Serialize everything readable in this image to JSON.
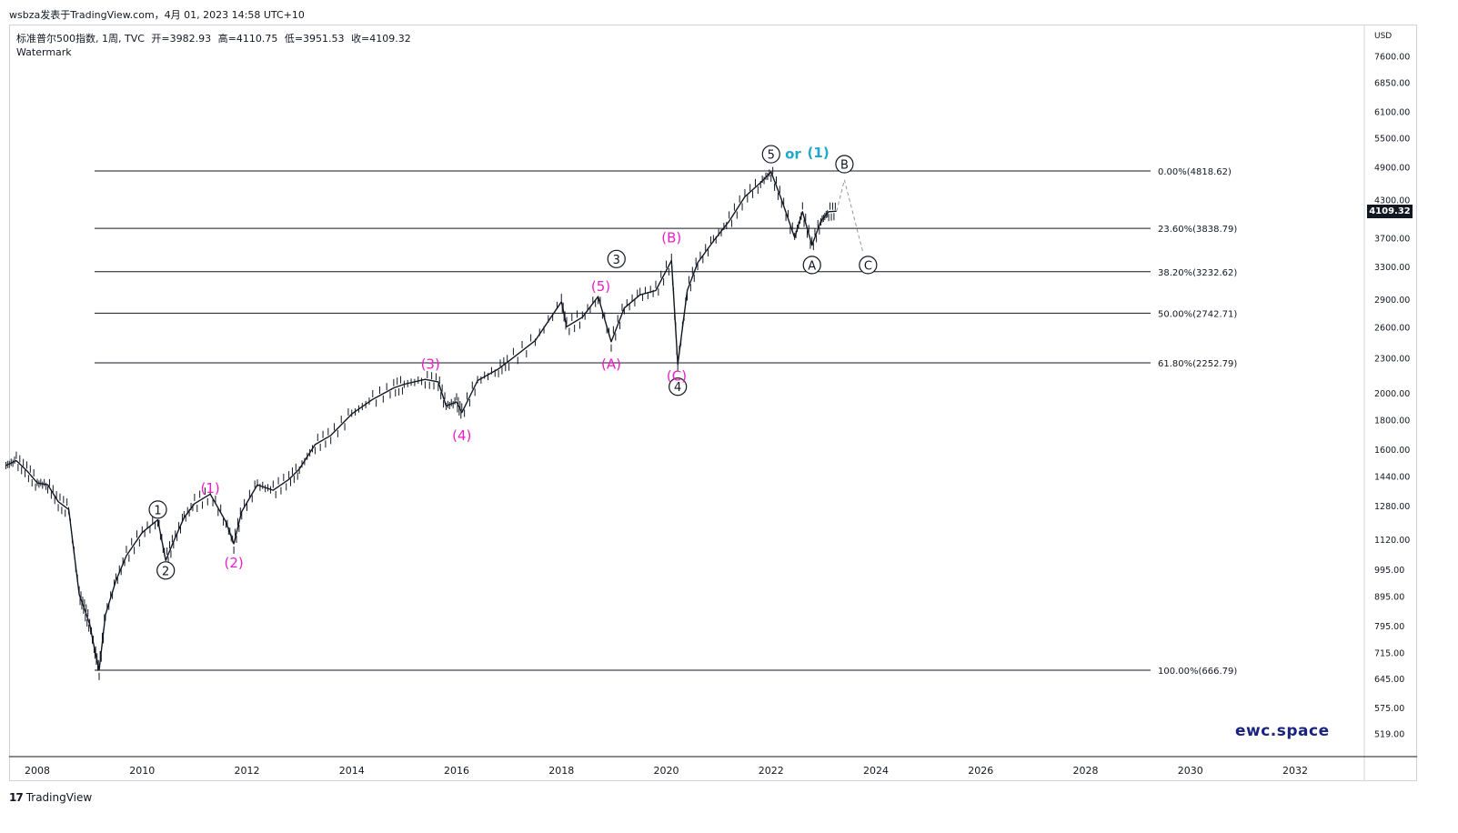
{
  "header": {
    "publisher_line": "wsbza发表于TradingView.com，4月 01, 2023 14:58 UTC+10"
  },
  "legend": {
    "symbol": "标准普尔500指数, 1周, TVC",
    "open": "开=3982.93",
    "high": "高=4110.75",
    "low": "低=3951.53",
    "close": "收=4109.32",
    "watermark": "Watermark"
  },
  "footer": {
    "logo": "17",
    "name": "TradingView"
  },
  "brand": "ewc.space",
  "colors": {
    "candle": "#131722",
    "wave_magenta": "#e91ec8",
    "wave_cyan": "#1fa8c9",
    "fib_line": "#131722",
    "axis_text": "#131722",
    "price_tag_bg": "#131722"
  },
  "chart_data": {
    "type": "line",
    "title": "",
    "currency": "USD",
    "scale": "log",
    "last_price": "4109.32",
    "x_ticks": [
      "2008",
      "2010",
      "2012",
      "2014",
      "2016",
      "2018",
      "2020",
      "2022",
      "2024",
      "2026",
      "2028",
      "2030",
      "2032"
    ],
    "y_ticks": [
      "7600.00",
      "6850.00",
      "6100.00",
      "5500.00",
      "4900.00",
      "4300.00",
      "3700.00",
      "3300.00",
      "2900.00",
      "2600.00",
      "2300.00",
      "2000.00",
      "1800.00",
      "1600.00",
      "1440.00",
      "1280.00",
      "1120.00",
      "995.00",
      "895.00",
      "795.00",
      "715.00",
      "645.00",
      "575.00",
      "519.00"
    ],
    "series": [
      {
        "x": [
          2007.4,
          2007.6,
          2007.8,
          2008.0,
          2008.2,
          2008.4,
          2008.6,
          2008.8,
          2008.9,
          2009.0,
          2009.1,
          2009.18,
          2009.3,
          2009.5,
          2009.7,
          2010.0,
          2010.3,
          2010.45,
          2010.6,
          2010.8,
          2011.0,
          2011.3,
          2011.6,
          2011.75,
          2011.9,
          2012.2,
          2012.5,
          2012.8,
          2013.0,
          2013.3,
          2013.6,
          2014.0,
          2014.4,
          2014.8,
          2015.0,
          2015.4,
          2015.65,
          2015.8,
          2016.0,
          2016.1,
          2016.4,
          2016.8,
          2017.0,
          2017.5,
          2018.0,
          2018.1,
          2018.4,
          2018.7,
          2018.95,
          2019.2,
          2019.5,
          2019.8,
          2020.1,
          2020.22,
          2020.4,
          2020.6,
          2020.9,
          2021.2,
          2021.5,
          2021.8,
          2022.0,
          2022.2,
          2022.45,
          2022.6,
          2022.78,
          2022.95,
          2023.1,
          2023.25
        ],
        "y": [
          1500,
          1530,
          1470,
          1400,
          1390,
          1300,
          1260,
          900,
          850,
          800,
          720,
          667,
          830,
          950,
          1050,
          1150,
          1210,
          1030,
          1110,
          1220,
          1290,
          1340,
          1200,
          1100,
          1250,
          1390,
          1360,
          1420,
          1480,
          1630,
          1690,
          1840,
          1950,
          2040,
          2070,
          2110,
          2090,
          1900,
          1930,
          1850,
          2100,
          2200,
          2270,
          2460,
          2870,
          2600,
          2700,
          2930,
          2450,
          2800,
          2950,
          3000,
          3380,
          2240,
          3000,
          3350,
          3650,
          3950,
          4350,
          4600,
          4800,
          4300,
          3700,
          4100,
          3590,
          3950,
          4100,
          4109
        ]
      }
    ],
    "projection": {
      "x": [
        2023.25,
        2023.4,
        2023.75
      ],
      "y": [
        4109,
        4650,
        3500
      ]
    },
    "fib_levels": [
      {
        "label": "0.00%(4818.62)",
        "value": 4818.62
      },
      {
        "label": "23.60%(3838.79)",
        "value": 3838.79
      },
      {
        "label": "38.20%(3232.62)",
        "value": 3232.62
      },
      {
        "label": "50.00%(2742.71)",
        "value": 2742.71
      },
      {
        "label": "61.80%(2252.79)",
        "value": 2252.79
      },
      {
        "label": "100.00%(666.79)",
        "value": 666.79
      }
    ],
    "wave_labels": [
      {
        "text": "1",
        "style": "circle",
        "color": "#131722",
        "x": 2010.3,
        "y": 1260
      },
      {
        "text": "2",
        "style": "circle",
        "color": "#131722",
        "x": 2010.45,
        "y": 990
      },
      {
        "text": "3",
        "style": "circle",
        "color": "#131722",
        "x": 2019.05,
        "y": 3400
      },
      {
        "text": "4",
        "style": "circle",
        "color": "#131722",
        "x": 2020.22,
        "y": 2050
      },
      {
        "text": "5",
        "style": "circle",
        "color": "#131722",
        "x": 2022.0,
        "y": 5150
      },
      {
        "text": "B",
        "style": "circle",
        "color": "#131722",
        "x": 2023.4,
        "y": 4950
      },
      {
        "text": "A",
        "style": "circle",
        "color": "#131722",
        "x": 2022.78,
        "y": 3320
      },
      {
        "text": "C",
        "style": "circle",
        "color": "#131722",
        "x": 2023.85,
        "y": 3320
      },
      {
        "text": "(1)",
        "style": "plain",
        "color": "#e91ec8",
        "x": 2011.3,
        "y": 1370
      },
      {
        "text": "(2)",
        "style": "plain",
        "color": "#e91ec8",
        "x": 2011.75,
        "y": 1020
      },
      {
        "text": "(3)",
        "style": "plain",
        "color": "#e91ec8",
        "x": 2015.5,
        "y": 2240
      },
      {
        "text": "(4)",
        "style": "plain",
        "color": "#e91ec8",
        "x": 2016.1,
        "y": 1690
      },
      {
        "text": "(5)",
        "style": "plain",
        "color": "#e91ec8",
        "x": 2018.75,
        "y": 3050
      },
      {
        "text": "(A)",
        "style": "plain",
        "color": "#e91ec8",
        "x": 2018.95,
        "y": 2240
      },
      {
        "text": "(B)",
        "style": "plain",
        "color": "#e91ec8",
        "x": 2020.1,
        "y": 3700
      },
      {
        "text": "(C)",
        "style": "plain",
        "color": "#e91ec8",
        "x": 2020.2,
        "y": 2140
      },
      {
        "text": "or",
        "style": "plain",
        "color": "#1fa8c9",
        "x": 2022.42,
        "y": 5150
      },
      {
        "text": "(1)",
        "style": "plain",
        "color": "#1fa8c9",
        "x": 2022.9,
        "y": 5180
      }
    ]
  }
}
